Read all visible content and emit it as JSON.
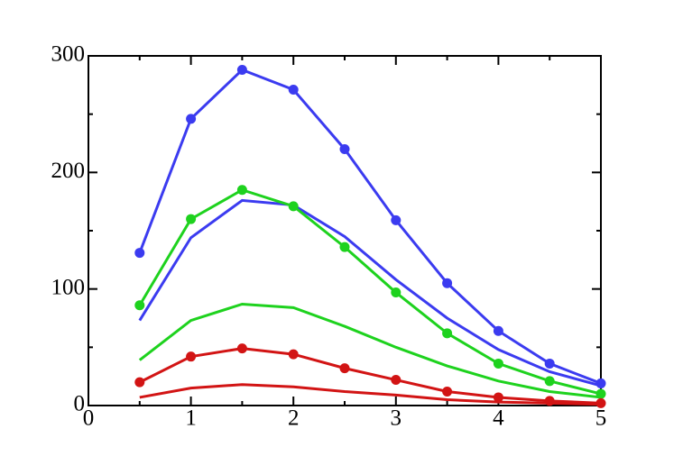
{
  "chart_data": {
    "type": "line",
    "x": [
      0.5,
      1,
      1.5,
      2,
      2.5,
      3,
      3.5,
      4,
      4.5,
      5
    ],
    "series": [
      {
        "color": "#3b3bf0",
        "markers": true,
        "values": [
          131,
          246,
          288,
          271,
          220,
          159,
          105,
          64,
          36,
          19
        ]
      },
      {
        "color": "#3b3bf0",
        "markers": false,
        "values": [
          73,
          144,
          176,
          172,
          145,
          108,
          75,
          48,
          29,
          17
        ]
      },
      {
        "color": "#1ed21e",
        "markers": true,
        "values": [
          86,
          160,
          185,
          171,
          136,
          97,
          62,
          36,
          21,
          10
        ]
      },
      {
        "color": "#1ed21e",
        "markers": false,
        "values": [
          39,
          73,
          87,
          84,
          68,
          50,
          34,
          21,
          12,
          7
        ]
      },
      {
        "color": "#d21414",
        "markers": true,
        "values": [
          20,
          42,
          49,
          44,
          32,
          22,
          12,
          7,
          4,
          2
        ]
      },
      {
        "color": "#d21414",
        "markers": false,
        "values": [
          7,
          15,
          18,
          16,
          12,
          9,
          5,
          3,
          2,
          1
        ]
      }
    ],
    "xlim": [
      0,
      5
    ],
    "ylim": [
      0,
      300
    ],
    "xticks": [
      0,
      1,
      2,
      3,
      4,
      5
    ],
    "yticks": [
      0,
      100,
      200,
      300
    ],
    "xminorticks": [
      0.5,
      1.5,
      2.5,
      3.5,
      4.5
    ],
    "yminorticks": [
      50,
      150,
      250
    ]
  }
}
